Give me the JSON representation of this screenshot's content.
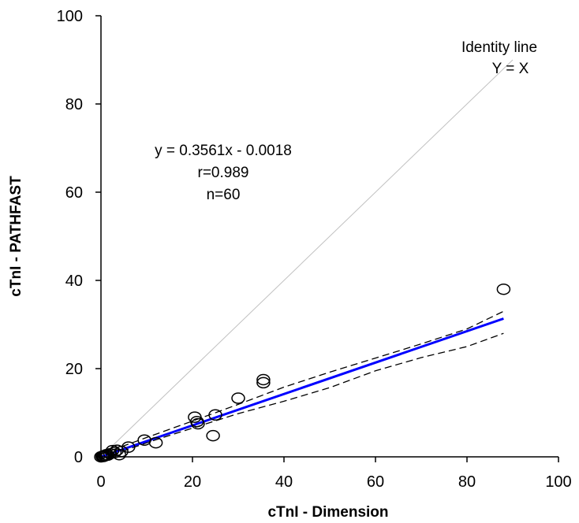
{
  "chart_data": {
    "type": "scatter",
    "title": "",
    "xlabel": "cTnI - Dimension",
    "ylabel": "cTnI - PATHFAST",
    "xlim": [
      0,
      100
    ],
    "ylim": [
      0,
      100
    ],
    "xticks": [
      "0",
      "20",
      "40",
      "60",
      "80",
      "100"
    ],
    "yticks": [
      "0",
      "20",
      "40",
      "60",
      "80",
      "100"
    ],
    "grid": false,
    "colors": {
      "regression": "#0000ff",
      "identity": "#c0c0c0",
      "ci": "#000000",
      "points": "#000000"
    },
    "series": [
      {
        "type": "scatter",
        "points": [
          [
            0,
            0
          ],
          [
            0.3,
            0.1
          ],
          [
            0.5,
            0.2
          ],
          [
            0.6,
            0.1
          ],
          [
            0.8,
            0.3
          ],
          [
            1,
            0.3
          ],
          [
            1.2,
            0.5
          ],
          [
            1.5,
            0.4
          ],
          [
            2,
            0.7
          ],
          [
            2.5,
            1.4
          ],
          [
            3,
            1
          ],
          [
            3.5,
            1.5
          ],
          [
            4,
            0.5
          ],
          [
            4.5,
            1.2
          ],
          [
            6,
            2.2
          ],
          [
            9.5,
            3.8
          ],
          [
            12,
            3.2
          ],
          [
            20.5,
            9
          ],
          [
            21,
            8
          ],
          [
            21.2,
            7.5
          ],
          [
            24.5,
            4.8
          ],
          [
            25,
            9.5
          ],
          [
            30,
            13.3
          ],
          [
            35.5,
            16.8
          ],
          [
            35.5,
            17.5
          ],
          [
            88,
            38
          ]
        ]
      },
      {
        "type": "line",
        "role": "regression",
        "x": [
          0,
          88
        ],
        "y": [
          -0.0018,
          31.335
        ]
      },
      {
        "type": "line",
        "role": "identity",
        "x": [
          0,
          90
        ],
        "y": [
          0,
          90
        ]
      },
      {
        "type": "line",
        "role": "ci-upper",
        "x": [
          0,
          10,
          20,
          30,
          40,
          50,
          60,
          70,
          80,
          88
        ],
        "y": [
          0.6,
          4.4,
          8.1,
          11.9,
          15.8,
          19.2,
          22.4,
          25.6,
          29.0,
          33.0
        ]
      },
      {
        "type": "line",
        "role": "ci-lower",
        "x": [
          0,
          10,
          20,
          30,
          40,
          50,
          60,
          70,
          80,
          88
        ],
        "y": [
          -0.5,
          3.2,
          6.5,
          9.8,
          12.6,
          15.7,
          19.5,
          22.5,
          25.0,
          28.0
        ]
      }
    ],
    "annotations": {
      "equation": "y = 0.3561x - 0.0018",
      "r": "r=0.989",
      "n": "n=60",
      "identity_line": "Identity line",
      "identity_formula": "Y = X"
    }
  }
}
